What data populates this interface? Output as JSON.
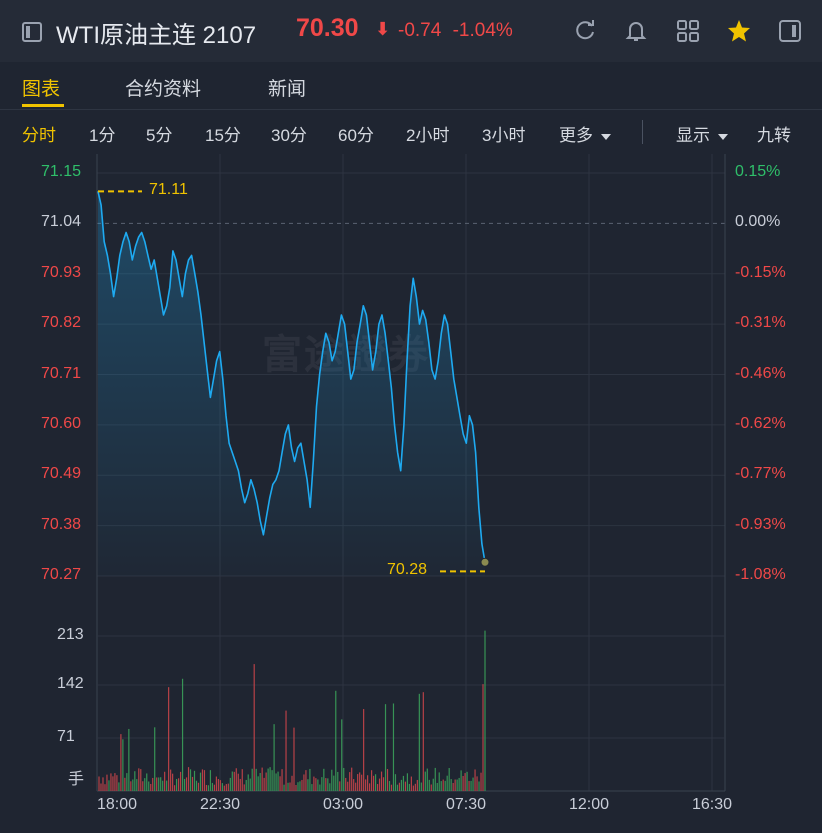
{
  "header": {
    "title": "WTI原油主连 2107",
    "price": "70.30",
    "price_arrow": "⬇",
    "change": "-0.74",
    "change_pct": "-1.04%",
    "icons": [
      "panel-left-icon",
      "refresh-icon",
      "bell-icon",
      "grid-icon",
      "star-icon",
      "panel-right-icon"
    ],
    "colors": {
      "down": "#f04848",
      "up": "#2fbf6a",
      "accent": "#f0c300",
      "line": "#1eaaf1"
    }
  },
  "tabs": [
    {
      "label": "图表",
      "active": true
    },
    {
      "label": "合约资料",
      "active": false
    },
    {
      "label": "新闻",
      "active": false
    }
  ],
  "periods": [
    {
      "label": "分时",
      "active": true
    },
    {
      "label": "1分"
    },
    {
      "label": "5分"
    },
    {
      "label": "15分"
    },
    {
      "label": "30分"
    },
    {
      "label": "60分"
    },
    {
      "label": "2小时"
    },
    {
      "label": "3小时"
    },
    {
      "label": "更多"
    }
  ],
  "right_controls": {
    "display": "显示",
    "nine": "九转"
  },
  "watermark": "富途證券",
  "chart_data": {
    "type": "line",
    "price_axis": [
      "71.15",
      "71.04",
      "70.93",
      "70.82",
      "70.71",
      "70.60",
      "70.49",
      "70.38",
      "70.27"
    ],
    "pct_axis": [
      "0.15%",
      "0.00%",
      "-0.15%",
      "-0.31%",
      "-0.46%",
      "-0.62%",
      "-0.77%",
      "-0.93%",
      "-1.08%"
    ],
    "ylim": [
      70.27,
      71.15
    ],
    "prev_close": 71.04,
    "x_ticks": [
      "18:00",
      "22:30",
      "03:00",
      "07:30",
      "12:00",
      "16:30"
    ],
    "high_label": "71.11",
    "low_label": "70.28",
    "volume_axis": [
      "213",
      "142",
      "71"
    ],
    "volume_unit": "手",
    "volume_ylim": [
      0,
      250
    ],
    "series": [
      {
        "values": [
          71.11,
          71.08,
          71.0,
          70.97,
          70.93,
          70.88,
          70.92,
          70.97,
          71.0,
          71.02,
          71.0,
          70.96,
          70.99,
          71.01,
          71.02,
          71.0,
          70.97,
          70.94,
          70.96,
          70.92,
          70.88,
          70.84,
          70.86,
          70.9,
          70.98,
          70.96,
          70.92,
          70.88,
          70.93,
          70.96,
          70.97,
          70.93,
          70.89,
          70.84,
          70.78,
          70.72,
          70.66,
          70.7,
          70.74,
          70.76,
          70.7,
          70.62,
          70.56,
          70.54,
          70.52,
          70.5,
          70.46,
          70.43,
          70.45,
          70.48,
          70.46,
          70.43,
          70.39,
          70.36,
          70.4,
          70.44,
          70.47,
          70.48,
          70.5,
          70.54,
          70.58,
          70.6,
          70.55,
          70.52,
          70.55,
          70.56,
          70.52,
          70.48,
          70.42,
          70.52,
          70.64,
          70.71,
          70.76,
          70.8,
          70.78,
          70.74,
          70.76,
          70.8,
          70.84,
          70.82,
          70.76,
          70.7,
          70.72,
          70.78,
          70.82,
          70.86,
          70.84,
          70.78,
          70.72,
          70.76,
          70.82,
          70.84,
          70.8,
          70.74,
          70.68,
          70.6,
          70.54,
          70.5,
          70.6,
          70.74,
          70.86,
          70.92,
          70.88,
          70.82,
          70.85,
          70.83,
          70.78,
          70.72,
          70.7,
          70.74,
          70.8,
          70.84,
          70.82,
          70.76,
          70.7,
          70.66,
          70.62,
          70.58,
          70.56,
          70.62,
          70.6,
          70.54,
          70.42,
          70.34,
          70.3
        ]
      }
    ]
  }
}
